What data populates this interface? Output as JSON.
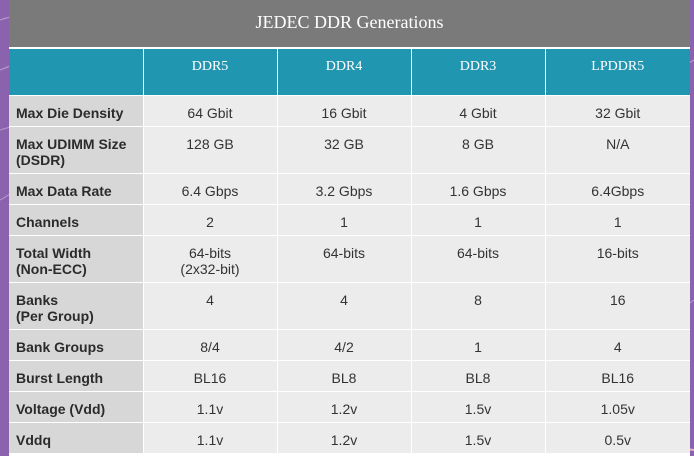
{
  "table": {
    "title": "JEDEC DDR Generations",
    "header": [
      "",
      "DDR5",
      "DDR4",
      "DDR3",
      "LPDDR5"
    ],
    "rows": [
      {
        "label": [
          "Max Die Density"
        ],
        "values": [
          [
            "64 Gbit"
          ],
          [
            "16 Gbit"
          ],
          [
            "4 Gbit"
          ],
          [
            "32 Gbit"
          ]
        ],
        "size": "single"
      },
      {
        "label": [
          "Max UDIMM Size",
          "(DSDR)"
        ],
        "values": [
          [
            "128 GB"
          ],
          [
            "32 GB"
          ],
          [
            "8 GB"
          ],
          [
            "N/A"
          ]
        ],
        "size": "double"
      },
      {
        "label": [
          "Max Data Rate"
        ],
        "values": [
          [
            "6.4 Gbps"
          ],
          [
            "3.2 Gbps"
          ],
          [
            "1.6 Gbps"
          ],
          [
            "6.4Gbps"
          ]
        ],
        "size": "single"
      },
      {
        "label": [
          "Channels"
        ],
        "values": [
          [
            "2"
          ],
          [
            "1"
          ],
          [
            "1"
          ],
          [
            "1"
          ]
        ],
        "size": "single"
      },
      {
        "label": [
          "Total Width",
          "(Non-ECC)"
        ],
        "values": [
          [
            "64-bits",
            "(2x32-bit)"
          ],
          [
            "64-bits"
          ],
          [
            "64-bits"
          ],
          [
            "16-bits"
          ]
        ],
        "size": "double"
      },
      {
        "label": [
          "Banks",
          "(Per Group)"
        ],
        "values": [
          [
            "4"
          ],
          [
            "4"
          ],
          [
            "8"
          ],
          [
            "16"
          ]
        ],
        "size": "double"
      },
      {
        "label": [
          "Bank Groups"
        ],
        "values": [
          [
            "8/4"
          ],
          [
            "4/2"
          ],
          [
            "1"
          ],
          [
            "4"
          ]
        ],
        "size": "single"
      },
      {
        "label": [
          "Burst Length"
        ],
        "values": [
          [
            "BL16"
          ],
          [
            "BL8"
          ],
          [
            "BL8"
          ],
          [
            "BL16"
          ]
        ],
        "size": "single"
      },
      {
        "label": [
          "Voltage (Vdd)"
        ],
        "values": [
          [
            "1.1v"
          ],
          [
            "1.2v"
          ],
          [
            "1.5v"
          ],
          [
            "1.05v"
          ]
        ],
        "size": "single"
      },
      {
        "label": [
          "Vddq"
        ],
        "values": [
          [
            "1.1v"
          ],
          [
            "1.2v"
          ],
          [
            "1.5v"
          ],
          [
            "0.5v"
          ]
        ],
        "size": "single"
      }
    ]
  },
  "colors": {
    "page_background": "#8a62ad",
    "title_background": "#7a7a7a",
    "header_background": "#2196b0",
    "label_cell": "#d7d7d7",
    "value_cell": "#ececec"
  }
}
